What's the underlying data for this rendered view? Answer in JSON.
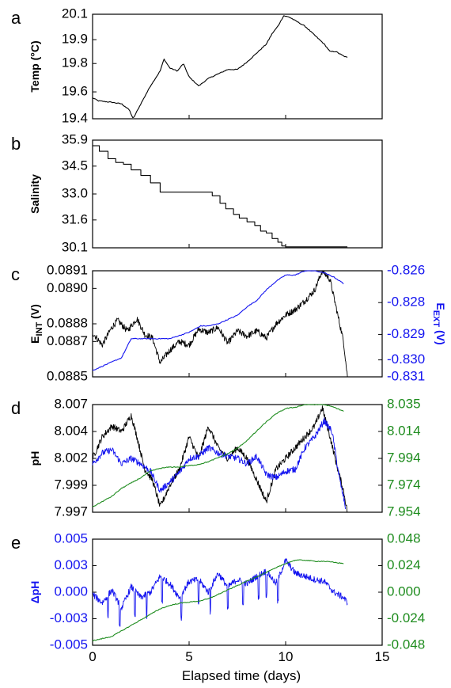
{
  "colors": {
    "black": "#000000",
    "blue": "#1414f0",
    "green": "#1e8c1e"
  },
  "chart_data": [
    {
      "id": "a",
      "type": "line",
      "letter": "a",
      "ylabel": "Temp (°C)",
      "xlim": [
        0,
        15
      ],
      "ylim": [
        19.4,
        20.1
      ],
      "y_ticks": [
        "20.1",
        "19.9",
        "19.8",
        "19.6",
        "19.4"
      ],
      "y_tick_values": [
        20.1,
        19.93,
        19.77,
        19.58,
        19.4
      ],
      "series": [
        {
          "color": "#000000",
          "x": [
            0,
            0.3,
            1,
            1.5,
            1.9,
            2.1,
            2.5,
            3.0,
            3.5,
            3.7,
            4.0,
            4.4,
            4.7,
            5.0,
            5.5,
            6.0,
            6.5,
            7.0,
            7.5,
            8.0,
            8.5,
            9.0,
            9.3,
            9.6,
            9.9,
            10.2,
            10.6,
            11.0,
            11.5,
            12.0,
            12.3,
            12.6,
            13.0,
            13.2
          ],
          "y": [
            19.54,
            19.52,
            19.51,
            19.5,
            19.46,
            19.4,
            19.5,
            19.62,
            19.72,
            19.8,
            19.74,
            19.72,
            19.77,
            19.68,
            19.62,
            19.67,
            19.7,
            19.73,
            19.73,
            19.78,
            19.84,
            19.9,
            19.97,
            20.02,
            20.09,
            20.08,
            20.05,
            20.02,
            19.96,
            19.9,
            19.85,
            19.85,
            19.82,
            19.81
          ]
        }
      ]
    },
    {
      "id": "b",
      "type": "line",
      "letter": "b",
      "ylabel": "Salinity",
      "xlim": [
        0,
        15
      ],
      "ylim": [
        30.1,
        35.9
      ],
      "y_ticks": [
        "35.9",
        "34.5",
        "33.0",
        "31.6",
        "30.1"
      ],
      "y_tick_values": [
        35.9,
        34.5,
        33.0,
        31.6,
        30.1
      ],
      "series": [
        {
          "color": "#000000",
          "step": true,
          "x": [
            0,
            0.35,
            0.8,
            1.2,
            1.6,
            2.0,
            2.5,
            3.0,
            3.5,
            4.0,
            4.5,
            5.0,
            5.5,
            6.0,
            6.2,
            6.6,
            6.9,
            7.3,
            7.6,
            8.0,
            8.4,
            8.7,
            9.0,
            9.3,
            9.6,
            9.8,
            10.0,
            10.3,
            13.2
          ],
          "y": [
            35.6,
            35.3,
            34.9,
            34.7,
            34.6,
            34.3,
            34.0,
            33.6,
            33.1,
            33.1,
            33.1,
            33.1,
            33.1,
            33.1,
            32.9,
            32.5,
            32.2,
            31.9,
            31.7,
            31.5,
            31.3,
            31.0,
            30.9,
            30.6,
            30.4,
            30.2,
            30.15,
            30.15,
            30.15
          ]
        }
      ]
    },
    {
      "id": "c",
      "type": "line",
      "letter": "c",
      "ylabel": "E_INT (V)",
      "ylabel_main": "E",
      "ylabel_sub": "INT",
      "ylabel_unit": " (V)",
      "ylabel_right": "E_EXT (V)",
      "ylabel_right_main": "E",
      "ylabel_right_sub": "EXT",
      "ylabel_right_unit": " (V)",
      "xlim": [
        0,
        15
      ],
      "ylim": [
        0.0885,
        0.0891
      ],
      "ylim_right": [
        -0.831,
        -0.826
      ],
      "y_ticks": [
        "0.0891",
        "0.0890",
        "0.0888",
        "0.0887",
        "0.0885"
      ],
      "y_tick_values": [
        0.0891,
        0.089,
        0.0888,
        0.0887,
        0.0885
      ],
      "y_ticks_right": [
        "-0.826",
        "-0.828",
        "-0.829",
        "-0.830",
        "-0.831"
      ],
      "y_tick_values_right": [
        -0.826,
        -0.8275,
        -0.829,
        -0.8302,
        -0.831
      ],
      "series": [
        {
          "color": "#000000",
          "axis": "left",
          "noisy": true,
          "x": [
            0,
            0.5,
            1.0,
            1.3,
            1.8,
            2.3,
            2.7,
            3.1,
            3.5,
            4.0,
            4.5,
            5.0,
            5.5,
            6.0,
            6.5,
            7.0,
            7.5,
            8.0,
            8.5,
            9.0,
            9.5,
            10.0,
            10.5,
            11.0,
            11.5,
            11.9,
            12.3,
            12.7,
            13.0,
            13.2
          ],
          "y": [
            0.08875,
            0.08868,
            0.08878,
            0.08882,
            0.08876,
            0.08883,
            0.08874,
            0.08872,
            0.08858,
            0.08865,
            0.0887,
            0.08868,
            0.08877,
            0.08875,
            0.08878,
            0.08869,
            0.08876,
            0.08873,
            0.08876,
            0.08872,
            0.0888,
            0.08885,
            0.08888,
            0.08893,
            0.08899,
            0.0891,
            0.08905,
            0.08885,
            0.0887,
            0.0885
          ]
        },
        {
          "color": "#1414f0",
          "axis": "right",
          "x": [
            0,
            0.5,
            1.0,
            1.5,
            2.0,
            2.5,
            3.0,
            3.5,
            4.0,
            5.0,
            5.6,
            6.0,
            6.5,
            7.0,
            7.5,
            8.0,
            8.5,
            9.0,
            9.5,
            10.0,
            10.5,
            11.0,
            11.5,
            12.0,
            12.5,
            13.0
          ],
          "y": [
            -0.8307,
            -0.8305,
            -0.8303,
            -0.8301,
            -0.8292,
            -0.8292,
            -0.8292,
            -0.8292,
            -0.8292,
            -0.8289,
            -0.8286,
            -0.8286,
            -0.8285,
            -0.8283,
            -0.8281,
            -0.8277,
            -0.8274,
            -0.8269,
            -0.8265,
            -0.8262,
            -0.8262,
            -0.826,
            -0.826,
            -0.8261,
            -0.8263,
            -0.8266
          ]
        }
      ]
    },
    {
      "id": "d",
      "type": "line",
      "letter": "d",
      "ylabel": "pH",
      "xlim": [
        0,
        15
      ],
      "ylim": [
        7.997,
        8.007
      ],
      "ylim_right": [
        7.954,
        8.035
      ],
      "y_ticks": [
        "8.007",
        "8.004",
        "8.002",
        "7.999",
        "7.997"
      ],
      "y_tick_values": [
        8.007,
        8.0045,
        8.002,
        7.9995,
        7.997
      ],
      "y_ticks_right": [
        "8.035",
        "8.014",
        "7.994",
        "7.974",
        "7.954"
      ],
      "y_tick_values_right": [
        8.035,
        8.0148,
        7.9945,
        7.9743,
        7.954
      ],
      "series": [
        {
          "color": "#000000",
          "axis": "left",
          "noisy": true,
          "x": [
            0,
            0.5,
            1.0,
            1.5,
            2.0,
            2.3,
            2.7,
            3.1,
            3.5,
            4.0,
            4.5,
            5.0,
            5.5,
            6.0,
            6.5,
            7.0,
            7.5,
            8.0,
            8.5,
            9.0,
            9.5,
            10.0,
            10.5,
            11.0,
            11.5,
            11.9,
            12.3,
            12.7,
            13.0,
            13.2
          ],
          "y": [
            8.002,
            8.004,
            8.005,
            8.0045,
            8.006,
            8.004,
            8.001,
            8.0,
            7.9975,
            7.9995,
            8.001,
            8.004,
            8.002,
            8.005,
            8.003,
            8.002,
            8.003,
            8.002,
            8.0,
            7.998,
            8.001,
            8.002,
            8.003,
            8.004,
            8.005,
            8.0067,
            8.004,
            8.001,
            7.999,
            7.997
          ]
        },
        {
          "color": "#1414f0",
          "axis": "left",
          "noisy": true,
          "x": [
            0,
            0.5,
            1.0,
            1.5,
            2.0,
            2.5,
            3.0,
            3.5,
            4.0,
            4.5,
            5.0,
            5.5,
            6.0,
            6.5,
            7.0,
            7.5,
            8.0,
            8.5,
            9.0,
            9.5,
            10.0,
            10.5,
            11.0,
            11.5,
            12.0,
            12.4,
            12.8,
            13.1
          ],
          "y": [
            8.0015,
            8.0025,
            8.0028,
            8.0015,
            8.002,
            8.0015,
            8.0008,
            7.999,
            7.9998,
            8.0007,
            8.002,
            8.0022,
            8.003,
            8.0025,
            8.0022,
            8.002,
            8.0015,
            8.0022,
            8.0005,
            8.0002,
            8.0008,
            8.001,
            8.003,
            8.004,
            8.0055,
            8.0045,
            8.0,
            7.9975
          ]
        },
        {
          "color": "#1e8c1e",
          "axis": "right",
          "x": [
            0,
            0.5,
            1.0,
            1.5,
            2.0,
            2.5,
            3.0,
            3.5,
            4.0,
            4.5,
            5.0,
            5.5,
            6.0,
            6.5,
            7.0,
            7.5,
            8.0,
            8.5,
            9.0,
            9.5,
            10.0,
            10.5,
            11.0,
            11.5,
            12.0,
            12.5,
            13.0
          ],
          "y": [
            7.958,
            7.962,
            7.966,
            7.972,
            7.976,
            7.98,
            7.985,
            7.987,
            7.988,
            7.988,
            7.989,
            7.99,
            7.992,
            7.995,
            7.998,
            8.002,
            8.008,
            8.015,
            8.022,
            8.028,
            8.032,
            8.033,
            8.035,
            8.035,
            8.035,
            8.033,
            8.03
          ]
        }
      ]
    },
    {
      "id": "e",
      "type": "line",
      "letter": "e",
      "ylabel": "ΔpH",
      "xlim": [
        0,
        15
      ],
      "xlabel": "Elapsed time (days)",
      "x_ticks": [
        "0",
        "5",
        "10",
        "15"
      ],
      "x_tick_values": [
        0,
        5,
        10,
        15
      ],
      "ylim": [
        -0.005,
        0.005
      ],
      "ylim_right": [
        -0.048,
        0.048
      ],
      "y_ticks": [
        "0.005",
        "0.003",
        "0.000",
        "-0.003",
        "-0.005"
      ],
      "y_tick_values": [
        0.005,
        0.0025,
        0.0,
        -0.0025,
        -0.005
      ],
      "y_ticks_right": [
        "0.048",
        "0.024",
        "0.000",
        "-0.024",
        "-0.048"
      ],
      "y_tick_values_right": [
        0.048,
        0.024,
        0.0,
        -0.024,
        -0.048
      ],
      "series": [
        {
          "color": "#1414f0",
          "axis": "left",
          "noisy": true,
          "spikes": [
            0.8,
            1.4,
            2.2,
            2.8,
            3.6,
            4.6,
            5.5,
            6.1,
            7.0,
            7.8,
            8.6,
            9.0,
            9.6
          ],
          "x": [
            0,
            0.5,
            1.0,
            1.5,
            2.0,
            2.5,
            3.0,
            3.5,
            4.0,
            4.5,
            5.0,
            5.5,
            6.0,
            6.5,
            7.0,
            7.5,
            8.0,
            8.5,
            9.0,
            9.5,
            10.0,
            10.5,
            11.0,
            11.5,
            12.0,
            12.5,
            13.0,
            13.2
          ],
          "y": [
            -0.0002,
            -0.001,
            0.0002,
            -0.0015,
            0.0005,
            -0.0005,
            0.0,
            0.0015,
            0.0008,
            -0.0005,
            0.001,
            0.0012,
            0.0,
            0.0018,
            0.0005,
            0.0012,
            0.0008,
            0.0015,
            0.002,
            0.0008,
            0.003,
            0.0018,
            0.0015,
            0.0012,
            0.001,
            0.0,
            -0.0005,
            -0.001
          ]
        },
        {
          "color": "#1e8c1e",
          "axis": "right",
          "x": [
            0,
            0.5,
            1.0,
            1.5,
            2.0,
            2.5,
            3.0,
            3.5,
            4.0,
            4.5,
            5.0,
            5.5,
            6.0,
            6.5,
            7.0,
            7.5,
            8.0,
            8.5,
            9.0,
            9.5,
            10.0,
            10.5,
            11.0,
            11.5,
            12.0,
            12.5,
            13.0
          ],
          "y": [
            -0.044,
            -0.042,
            -0.04,
            -0.035,
            -0.03,
            -0.025,
            -0.02,
            -0.015,
            -0.012,
            -0.01,
            -0.009,
            -0.008,
            -0.006,
            -0.002,
            0.002,
            0.006,
            0.01,
            0.014,
            0.018,
            0.022,
            0.026,
            0.029,
            0.029,
            0.028,
            0.028,
            0.027,
            0.026
          ]
        }
      ]
    }
  ]
}
